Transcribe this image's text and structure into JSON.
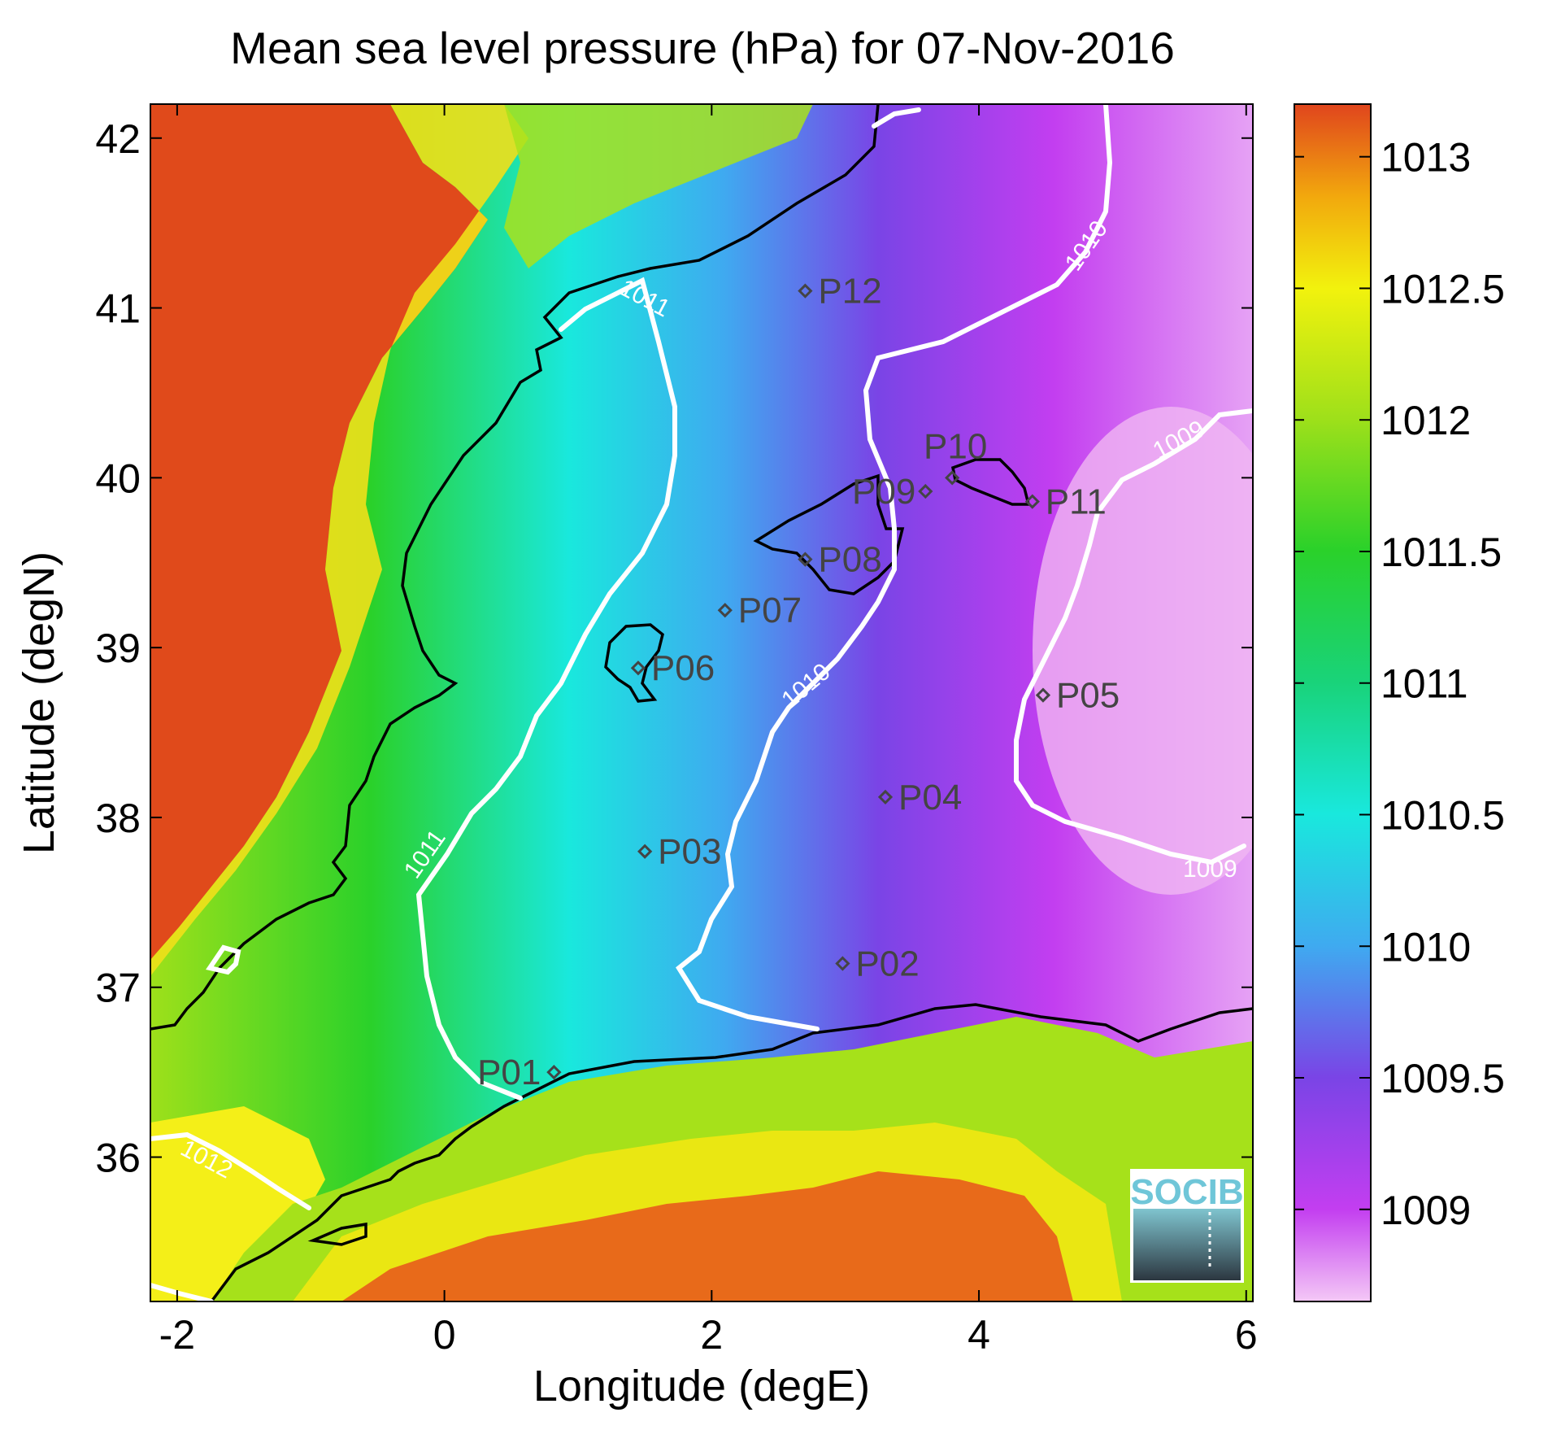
{
  "title": "Mean sea level pressure (hPa) for 07-Nov-2016",
  "xlabel": "Longitude (degE)",
  "ylabel": "Latitude (degN)",
  "xlim": [
    -2.2,
    6.05
  ],
  "ylim": [
    35.15,
    42.2
  ],
  "xticks": [
    -2,
    0,
    2,
    4,
    6
  ],
  "yticks": [
    36,
    37,
    38,
    39,
    40,
    41,
    42
  ],
  "colorbar": {
    "range": [
      1008.65,
      1013.2
    ],
    "ticks": [
      1009,
      1009.5,
      1010,
      1010.5,
      1011,
      1011.5,
      1012,
      1012.5,
      1013
    ],
    "tick_labels": [
      "1009",
      "1009.5",
      "1010",
      "1010.5",
      "1011",
      "1011.5",
      "1012",
      "1012.5",
      "1013"
    ],
    "colormap": [
      "#f4c8f6",
      "#c33ef0",
      "#7a44e6",
      "#3faaf0",
      "#19e8dd",
      "#19d37a",
      "#2ad12a",
      "#9ee01a",
      "#f2f20d",
      "#f2a80d",
      "#e64a16",
      "#e0451d"
    ]
  },
  "stations": [
    {
      "name": "P01",
      "lon": 0.82,
      "lat": 36.5
    },
    {
      "name": "P02",
      "lon": 2.98,
      "lat": 37.14
    },
    {
      "name": "P03",
      "lon": 1.5,
      "lat": 37.8
    },
    {
      "name": "P04",
      "lon": 3.3,
      "lat": 38.12
    },
    {
      "name": "P05",
      "lon": 4.48,
      "lat": 38.72
    },
    {
      "name": "P06",
      "lon": 1.45,
      "lat": 38.88
    },
    {
      "name": "P07",
      "lon": 2.1,
      "lat": 39.22
    },
    {
      "name": "P08",
      "lon": 2.7,
      "lat": 39.52
    },
    {
      "name": "P09",
      "lon": 3.6,
      "lat": 39.92
    },
    {
      "name": "P10",
      "lon": 3.8,
      "lat": 40.0
    },
    {
      "name": "P11",
      "lon": 4.4,
      "lat": 39.86
    },
    {
      "name": "P12",
      "lon": 2.7,
      "lat": 41.1
    }
  ],
  "contour_labels": [
    "1009",
    "1009",
    "1010",
    "1010",
    "1011",
    "1011",
    "1012"
  ],
  "logo": {
    "text": "SOCIB"
  },
  "colors": {
    "contour": "#ffffff",
    "coastline": "#000000",
    "station": "#444444"
  }
}
